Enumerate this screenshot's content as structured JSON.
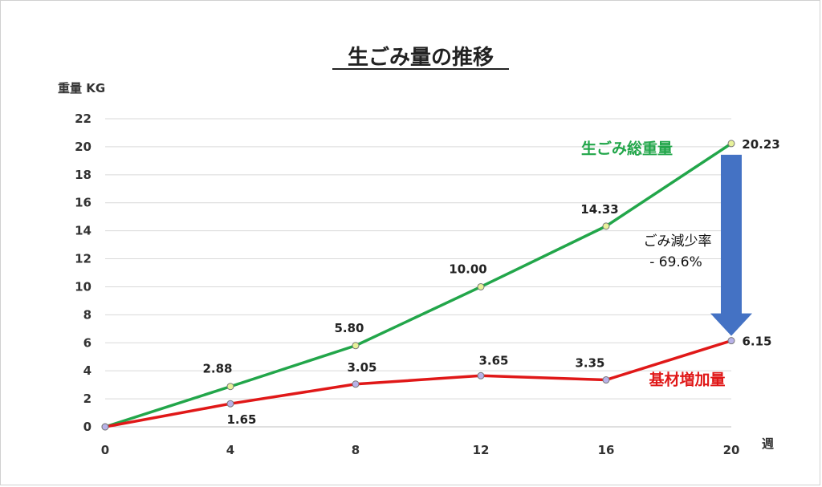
{
  "chart_data": {
    "type": "line",
    "title": "生ごみ量の推移",
    "ylabel": "重量 KG",
    "xlabel": "週",
    "x": [
      0,
      4,
      8,
      12,
      16,
      20
    ],
    "x_tick_labels": [
      "0",
      "4",
      "8",
      "12",
      "16",
      "20"
    ],
    "ylim": [
      0,
      22
    ],
    "y_ticks": [
      0,
      2,
      4,
      6,
      8,
      10,
      12,
      14,
      16,
      18,
      20,
      22
    ],
    "y_tick_labels": [
      "0",
      "2",
      "4",
      "6",
      "8",
      "10",
      "12",
      "14",
      "16",
      "18",
      "20",
      "22"
    ],
    "grid": true,
    "series": [
      {
        "name": "生ごみ総重量",
        "color": "#22a64a",
        "marker_color": "#e8f29a",
        "values": [
          0,
          2.88,
          5.8,
          10.0,
          14.33,
          20.23
        ],
        "labels": [
          "",
          "2.88",
          "5.80",
          "10.00",
          "14.33",
          "20.23"
        ]
      },
      {
        "name": "基材増加量",
        "color": "#e01818",
        "marker_color": "#b8b2e8",
        "values": [
          0,
          1.65,
          3.05,
          3.65,
          3.35,
          6.15
        ],
        "labels": [
          "",
          "1.65",
          "3.05",
          "3.65",
          "3.35",
          "6.15"
        ]
      }
    ],
    "annotation": {
      "text_line1": "ごみ減少率",
      "text_line2": "- 69.6%",
      "arrow_color": "#4472c4"
    }
  }
}
